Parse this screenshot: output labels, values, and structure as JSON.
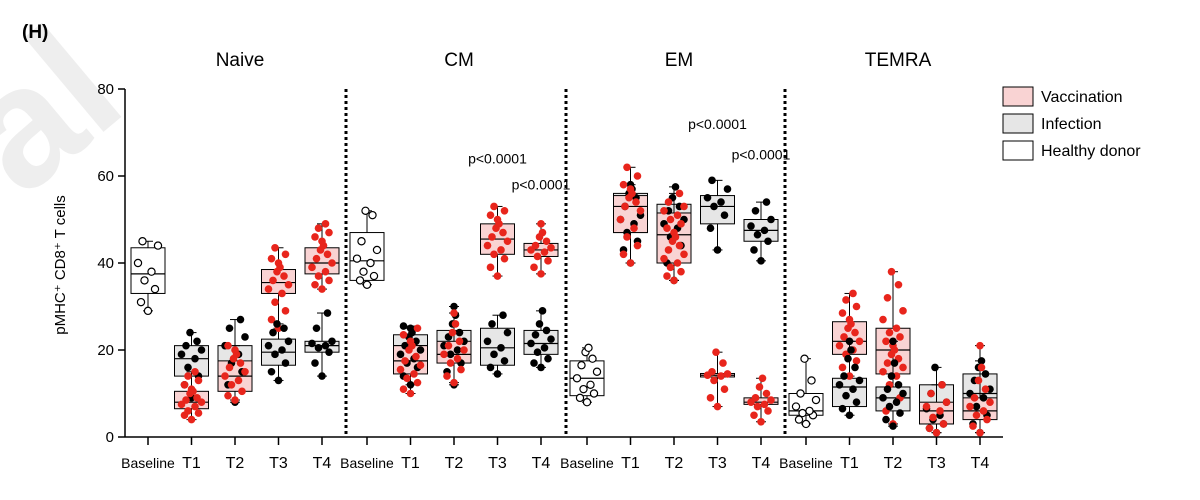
{
  "chart_data": {
    "type": "box-scatter",
    "panel_label": "(H)",
    "watermark": "al",
    "ylabel": "pMHC⁺ CD8⁺ T cells",
    "ylim": [
      0,
      80
    ],
    "yticks": [
      0,
      20,
      40,
      60,
      80
    ],
    "legend": {
      "placement": "top-right",
      "entries": [
        {
          "name": "Vaccination",
          "fill": "#f9d3d3",
          "stroke": "#000000"
        },
        {
          "name": "Infection",
          "fill": "#e6e6e6",
          "stroke": "#000000"
        },
        {
          "name": "Healthy donor",
          "fill": "#ffffff",
          "stroke": "#000000"
        }
      ]
    },
    "colors": {
      "vaccination_box": "#f9d3d3",
      "vaccination_dot": "#e8251c",
      "infection_box": "#e6e6e6",
      "infection_dot": "#000000",
      "healthy_box": "#ffffff",
      "healthy_dot": "#000000"
    },
    "panels": [
      {
        "title": "Naive",
        "categories": [
          "Baseline",
          "T1",
          "T2",
          "T3",
          "T4"
        ],
        "annotations": [],
        "groups": [
          {
            "cat": 0,
            "type": "healthy",
            "min": 29,
            "q1": 33,
            "median": 37.5,
            "q3": 43.5,
            "max": 45,
            "points": [
              29,
              31,
              34,
              36,
              38,
              40,
              44,
              45
            ]
          },
          {
            "cat": 1,
            "type": "infection",
            "min": 9,
            "q1": 14,
            "median": 18,
            "q3": 21,
            "max": 24,
            "points": [
              9,
              12,
              14,
              16,
              18,
              19,
              20,
              21,
              22,
              24
            ]
          },
          {
            "cat": 1,
            "type": "vaccination",
            "min": 4,
            "q1": 6.5,
            "median": 8,
            "q3": 10.5,
            "max": 15,
            "points": [
              4,
              5,
              5.5,
              6,
              7,
              7.5,
              8,
              8.5,
              9,
              10,
              10.5,
              11,
              12,
              13,
              14,
              15
            ]
          },
          {
            "cat": 2,
            "type": "infection",
            "min": 8,
            "q1": 12,
            "median": 16,
            "q3": 21,
            "max": 27,
            "points": [
              8,
              12,
              15,
              17,
              19,
              21,
              23,
              25,
              27
            ]
          },
          {
            "cat": 2,
            "type": "vaccination",
            "min": 8.5,
            "q1": 10.5,
            "median": 14,
            "q3": 17.5,
            "max": 21,
            "points": [
              8.5,
              9.5,
              10.5,
              12,
              13,
              14,
              15,
              16,
              17,
              18,
              19,
              20,
              21
            ]
          },
          {
            "cat": 3,
            "type": "vaccination",
            "min": 25,
            "q1": 33,
            "median": 35.5,
            "q3": 38.5,
            "max": 43.5,
            "points": [
              25,
              27,
              29,
              31,
              33,
              34,
              35,
              36,
              37,
              38,
              39,
              40,
              41,
              42,
              43.5
            ]
          },
          {
            "cat": 3,
            "type": "infection",
            "min": 13,
            "q1": 16.5,
            "median": 19.5,
            "q3": 22.5,
            "max": 26,
            "points": [
              13,
              15,
              17,
              19,
              20,
              21,
              22,
              24,
              25,
              26
            ]
          },
          {
            "cat": 4,
            "type": "vaccination",
            "min": 34,
            "q1": 37.5,
            "median": 40,
            "q3": 43.5,
            "max": 49,
            "points": [
              34,
              35,
              36,
              37,
              38,
              39,
              40,
              41,
              42,
              43,
              44,
              45,
              46,
              47,
              48,
              49
            ]
          },
          {
            "cat": 4,
            "type": "infection",
            "min": 14,
            "q1": 19.5,
            "median": 21,
            "q3": 22,
            "max": 28.5,
            "points": [
              14,
              17,
              19.5,
              20.5,
              21,
              21.5,
              22,
              25,
              28.5
            ]
          }
        ]
      },
      {
        "title": "CM",
        "categories": [
          "Baseline",
          "T1",
          "T2",
          "T3",
          "T4"
        ],
        "annotations": [
          {
            "text": "p<0.0001",
            "cat": 3,
            "y": 64
          },
          {
            "text": "p<0.0001",
            "cat": 4,
            "y": 58
          }
        ],
        "groups": [
          {
            "cat": 0,
            "type": "healthy",
            "min": 35,
            "q1": 36,
            "median": 40.5,
            "q3": 47,
            "max": 52,
            "points": [
              35,
              36,
              37,
              38,
              40,
              41,
              43,
              45,
              51,
              52
            ]
          },
          {
            "cat": 1,
            "type": "infection",
            "min": 12,
            "q1": 16.5,
            "median": 21,
            "q3": 23.5,
            "max": 25.5,
            "points": [
              12,
              14,
              16,
              17,
              18,
              19,
              20,
              21,
              22,
              23,
              24,
              25,
              25.5
            ]
          },
          {
            "cat": 1,
            "type": "vaccination",
            "min": 10,
            "q1": 14.5,
            "median": 17.5,
            "q3": 21,
            "max": 25,
            "points": [
              10,
              11,
              12.5,
              13.5,
              14.5,
              15.5,
              16.5,
              17.5,
              18.5,
              20,
              21,
              22,
              23.5,
              25
            ]
          },
          {
            "cat": 2,
            "type": "infection",
            "min": 12,
            "q1": 17.5,
            "median": 21.5,
            "q3": 24.5,
            "max": 30,
            "points": [
              12,
              15,
              17,
              19,
              20,
              21,
              22,
              23,
              24,
              26,
              28,
              30
            ]
          },
          {
            "cat": 2,
            "type": "vaccination",
            "min": 12.5,
            "q1": 17,
            "median": 19,
            "q3": 22,
            "max": 28.5,
            "points": [
              12.5,
              14,
              15.5,
              17,
              18,
              19,
              20,
              21,
              22,
              24,
              26,
              28.5
            ]
          },
          {
            "cat": 3,
            "type": "vaccination",
            "min": 37,
            "q1": 42,
            "median": 45.5,
            "q3": 49,
            "max": 53,
            "points": [
              37,
              39,
              41,
              42,
              43,
              44,
              45,
              46,
              47,
              48,
              49,
              50,
              51,
              52,
              53
            ]
          },
          {
            "cat": 3,
            "type": "infection",
            "min": 14.5,
            "q1": 16.5,
            "median": 20.5,
            "q3": 25,
            "max": 28,
            "points": [
              14.5,
              16,
              17.5,
              19,
              20.5,
              22,
              24,
              26,
              28
            ]
          },
          {
            "cat": 4,
            "type": "vaccination",
            "min": 37.5,
            "q1": 41.5,
            "median": 43,
            "q3": 44.5,
            "max": 49,
            "points": [
              37.5,
              39,
              40.5,
              41.5,
              42.5,
              43,
              43.5,
              44,
              45,
              46,
              47,
              49
            ]
          },
          {
            "cat": 4,
            "type": "infection",
            "min": 16,
            "q1": 19,
            "median": 21.5,
            "q3": 24.5,
            "max": 29,
            "points": [
              16,
              17,
              18,
              19.5,
              20.5,
              21.5,
              22.5,
              23.5,
              24.5,
              26,
              29
            ]
          }
        ]
      },
      {
        "title": "EM",
        "categories": [
          "Baseline",
          "T1",
          "T2",
          "T3",
          "T4"
        ],
        "annotations": [
          {
            "text": "p<0.0001",
            "cat": 3,
            "y": 72
          },
          {
            "text": "p<0.0001",
            "cat": 4,
            "y": 65
          }
        ],
        "groups": [
          {
            "cat": 0,
            "type": "healthy",
            "min": 8,
            "q1": 9.5,
            "median": 13.5,
            "q3": 17.5,
            "max": 20.5,
            "points": [
              8,
              9,
              10,
              11,
              12,
              13.5,
              15,
              16.5,
              18,
              19.5,
              20.5
            ]
          },
          {
            "cat": 1,
            "type": "infection",
            "min": 40,
            "q1": 47,
            "median": 50,
            "q3": 56,
            "max": 58,
            "points": [
              40,
              43,
              45,
              47,
              49,
              50,
              51,
              53,
              55,
              56,
              57,
              58
            ]
          },
          {
            "cat": 1,
            "type": "vaccination",
            "min": 40,
            "q1": 47,
            "median": 53,
            "q3": 55.5,
            "max": 62,
            "points": [
              40,
              42,
              44,
              46,
              48,
              50,
              52,
              53,
              54,
              55,
              56,
              57,
              58,
              60,
              62
            ]
          },
          {
            "cat": 2,
            "type": "infection",
            "min": 36,
            "q1": 46.5,
            "median": 49,
            "q3": 53.5,
            "max": 57.5,
            "points": [
              36,
              40,
              44,
              46,
              48,
              49,
              50,
              52,
              53,
              55,
              57.5
            ]
          },
          {
            "cat": 2,
            "type": "vaccination",
            "min": 36,
            "q1": 40,
            "median": 46.5,
            "q3": 51.5,
            "max": 56,
            "points": [
              36,
              37,
              38,
              39,
              40,
              41,
              42,
              43,
              44,
              45,
              46,
              47,
              48,
              49,
              50,
              51,
              52,
              53,
              54,
              56
            ]
          },
          {
            "cat": 3,
            "type": "infection",
            "min": 43,
            "q1": 49,
            "median": 53,
            "q3": 55.5,
            "max": 59,
            "points": [
              43,
              48,
              51,
              53,
              54,
              55,
              57,
              59
            ]
          },
          {
            "cat": 3,
            "type": "vaccination",
            "min": 7,
            "q1": 13.8,
            "median": 14.2,
            "q3": 14.6,
            "max": 19.5,
            "points": [
              7,
              9,
              11,
              13,
              14,
              14.2,
              14.5,
              15,
              17,
              19.5
            ]
          },
          {
            "cat": 4,
            "type": "infection",
            "min": 40.5,
            "q1": 45,
            "median": 47.5,
            "q3": 50,
            "max": 54,
            "points": [
              40.5,
              43,
              45,
              46.5,
              47.5,
              48.5,
              50,
              52,
              54
            ]
          },
          {
            "cat": 4,
            "type": "vaccination",
            "min": 3.5,
            "q1": 7.5,
            "median": 8,
            "q3": 9,
            "max": 13.5,
            "points": [
              3.5,
              5,
              6,
              7,
              7.5,
              8,
              8.5,
              9,
              10,
              11.5,
              13.5
            ]
          }
        ]
      },
      {
        "title": "TEMRA",
        "categories": [
          "Baseline",
          "T1",
          "T2",
          "T3",
          "T4"
        ],
        "annotations": [],
        "groups": [
          {
            "cat": 0,
            "type": "healthy",
            "min": 3,
            "q1": 5,
            "median": 6,
            "q3": 10,
            "max": 18,
            "points": [
              3,
              4,
              5,
              5.5,
              6,
              7,
              8.5,
              10,
              13,
              18
            ]
          },
          {
            "cat": 1,
            "type": "vaccination",
            "min": 14,
            "q1": 19,
            "median": 22,
            "q3": 26.5,
            "max": 33,
            "points": [
              14,
              16,
              17.5,
              19,
              20,
              21,
              22,
              23,
              24,
              25,
              26,
              27,
              28.5,
              30,
              31.5,
              33
            ]
          },
          {
            "cat": 1,
            "type": "infection",
            "min": 5,
            "q1": 7,
            "median": 11.5,
            "q3": 13.5,
            "max": 22,
            "points": [
              5,
              6.5,
              8,
              9.5,
              11,
              12,
              13,
              14,
              16,
              18,
              20,
              22
            ]
          },
          {
            "cat": 2,
            "type": "vaccination",
            "min": 3,
            "q1": 14.5,
            "median": 20,
            "q3": 25,
            "max": 38,
            "points": [
              3,
              6,
              9,
              12,
              14,
              15,
              16,
              17,
              18,
              19,
              20,
              21,
              22,
              23,
              24,
              25,
              27,
              29,
              32,
              35,
              38
            ]
          },
          {
            "cat": 2,
            "type": "infection",
            "min": 2.5,
            "q1": 6,
            "median": 9,
            "q3": 11.5,
            "max": 22,
            "points": [
              2.5,
              4,
              5.5,
              7,
              8,
              9,
              10,
              11,
              12,
              14,
              17,
              22
            ]
          },
          {
            "cat": 3,
            "type": "infection",
            "min": 1,
            "q1": 3,
            "median": 5,
            "q3": 12,
            "max": 16,
            "points": [
              1,
              2,
              3,
              4,
              5,
              6.5,
              8,
              10,
              12,
              16
            ]
          },
          {
            "cat": 3,
            "type": "vaccination",
            "min": 1,
            "q1": 3,
            "median": 6,
            "q3": 8,
            "max": 12,
            "points": [
              1,
              2,
              3,
              4.5,
              6,
              7,
              8,
              10,
              12
            ]
          },
          {
            "cat": 4,
            "type": "infection",
            "min": 1,
            "q1": 5.5,
            "median": 10,
            "q3": 14.5,
            "max": 17.5,
            "points": [
              1,
              3,
              5,
              7,
              9,
              10,
              11,
              13,
              14.5,
              16,
              17.5
            ]
          },
          {
            "cat": 4,
            "type": "vaccination",
            "min": 1,
            "q1": 4,
            "median": 6,
            "q3": 9,
            "max": 21,
            "points": [
              1,
              2.5,
              4,
              5,
              6,
              7,
              8,
              9,
              11,
              13,
              16,
              21
            ]
          }
        ]
      }
    ]
  }
}
